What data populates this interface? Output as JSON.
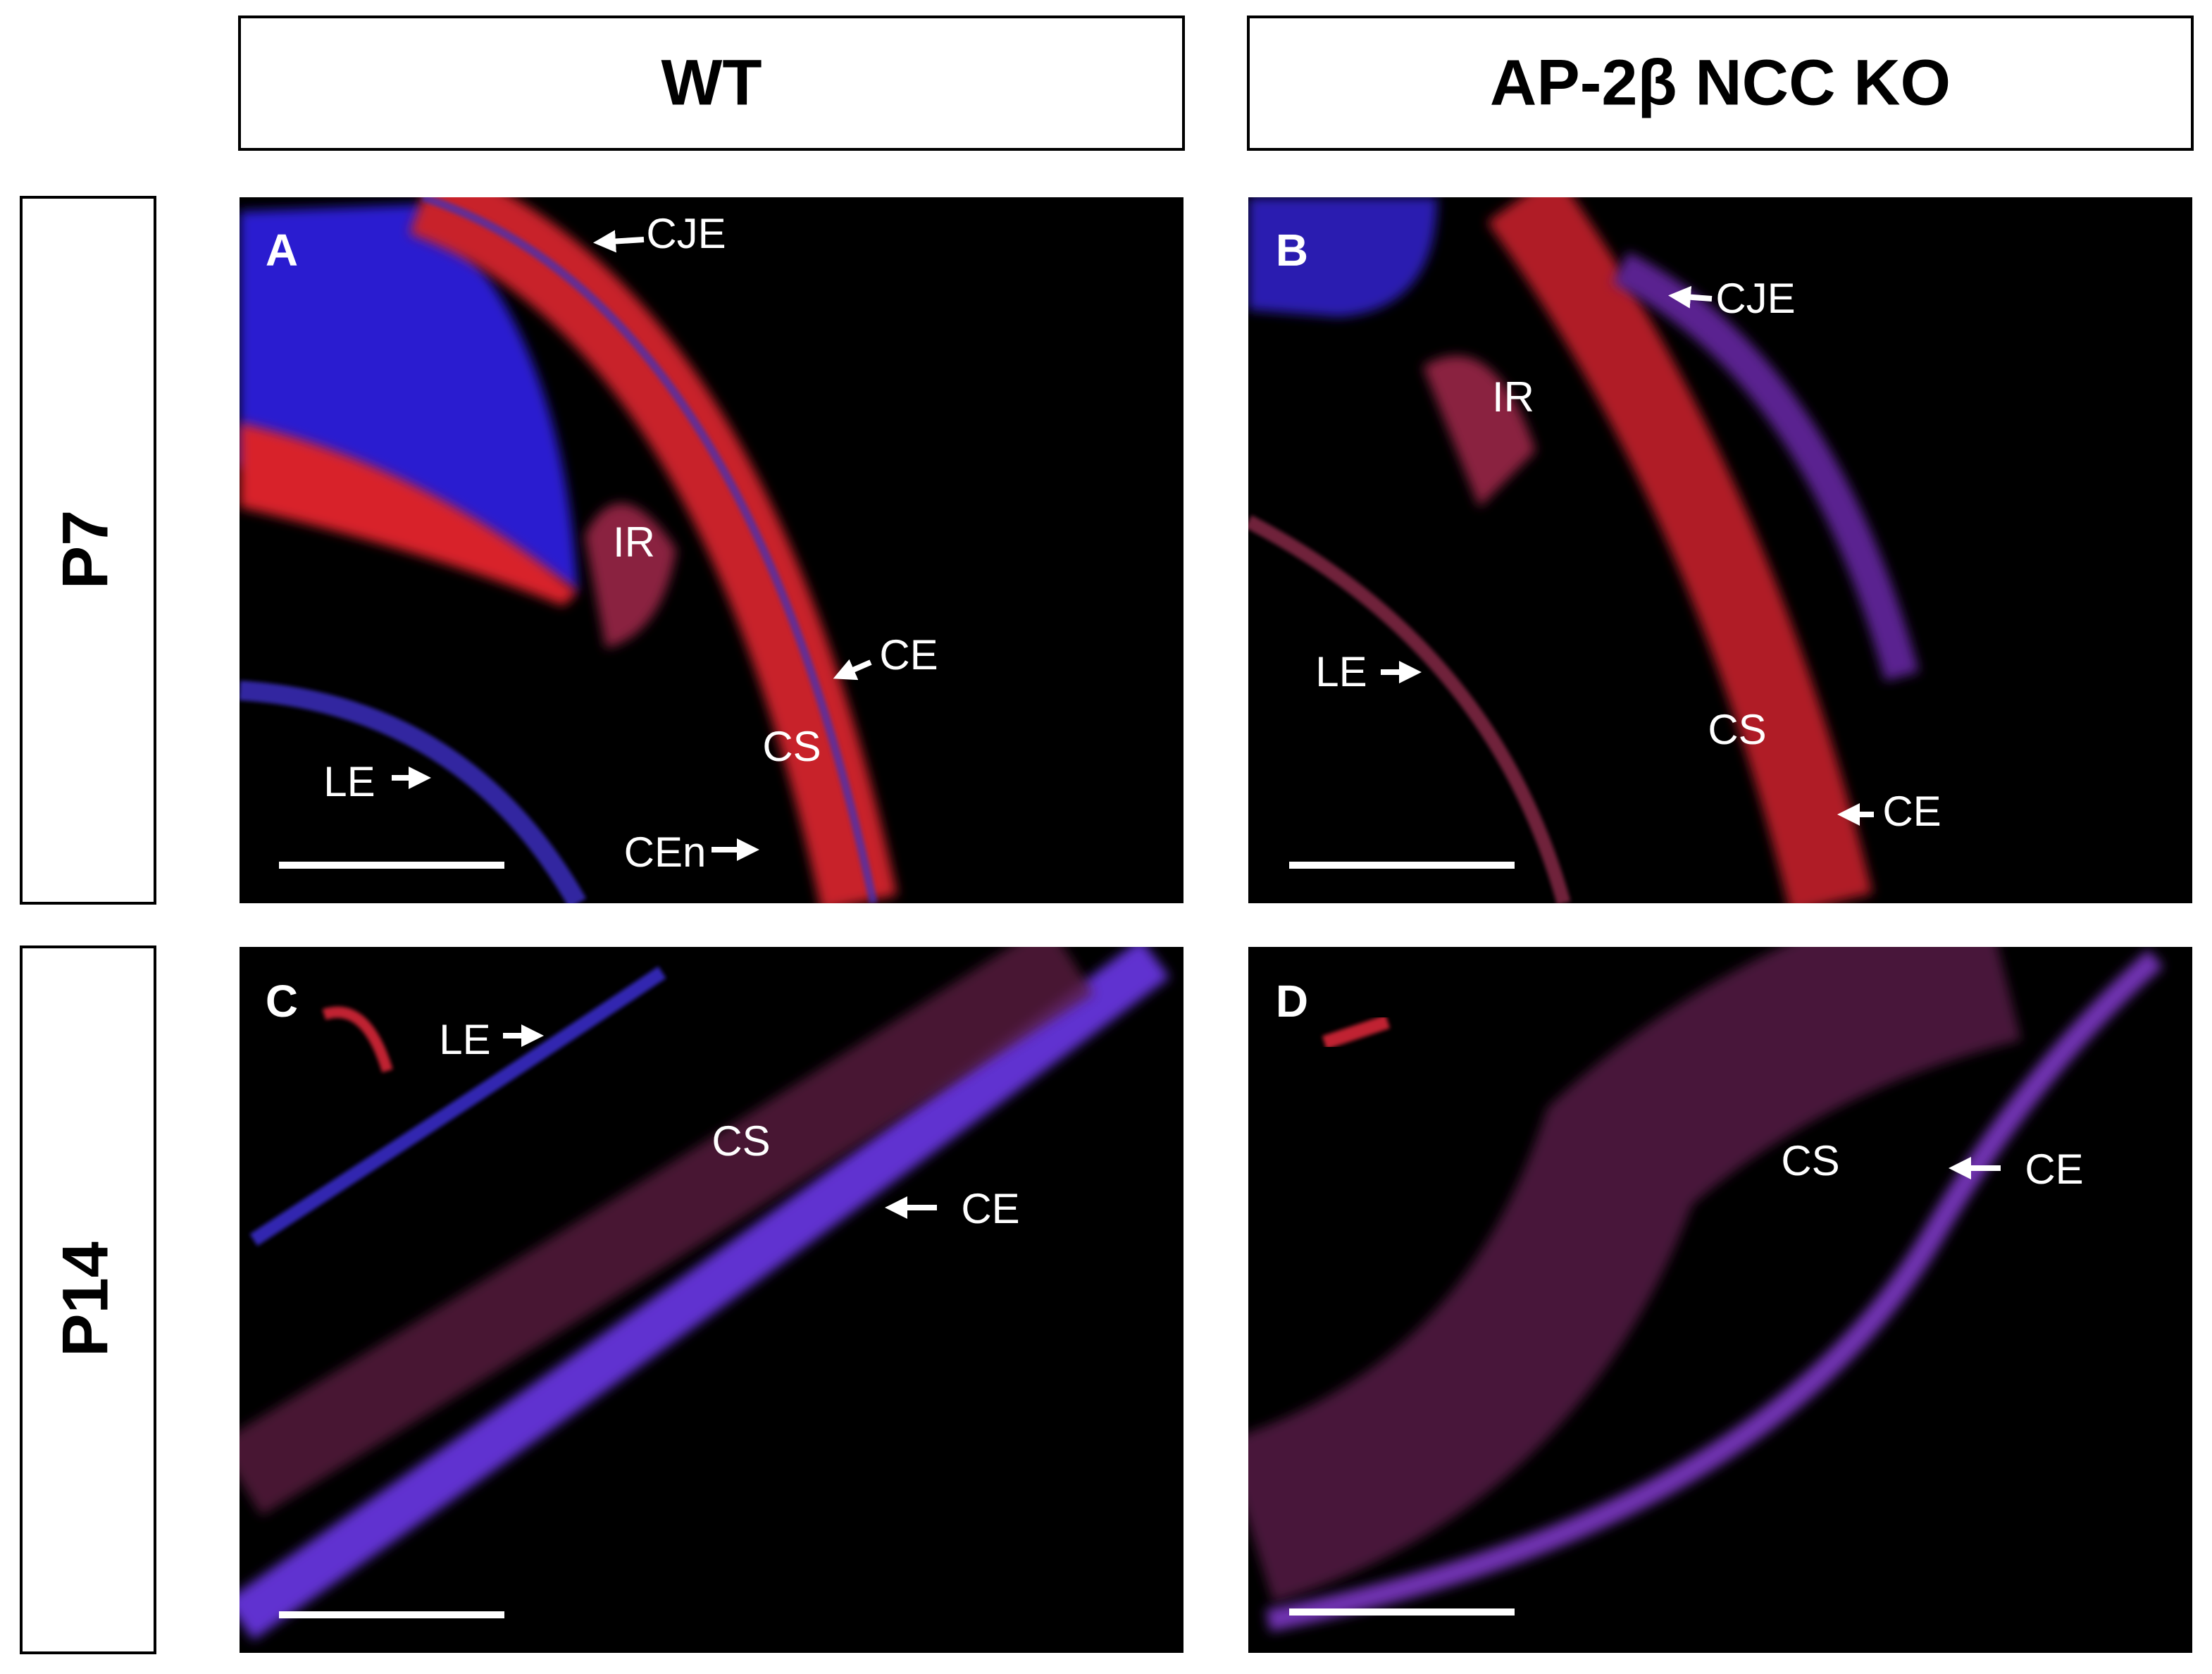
{
  "column_headers": [
    "WT",
    "AP-2β NCC KO"
  ],
  "row_headers": [
    "P7",
    "P14"
  ],
  "panels": [
    {
      "letter": "A",
      "labels": [
        "CJE",
        "IR",
        "CE",
        "CS",
        "LE",
        "CEn"
      ]
    },
    {
      "letter": "B",
      "labels": [
        "CJE",
        "IR",
        "LE",
        "CS",
        "CE"
      ]
    },
    {
      "letter": "C",
      "labels": [
        "LE",
        "CS",
        "CE"
      ]
    },
    {
      "letter": "D",
      "labels": [
        "CS",
        "CE"
      ]
    }
  ]
}
